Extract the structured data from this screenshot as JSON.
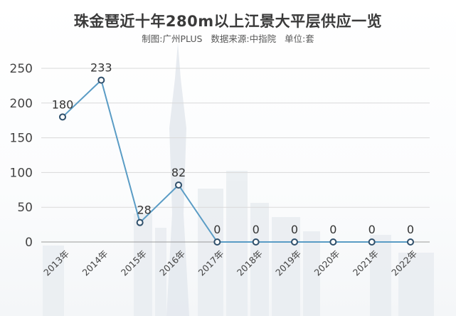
{
  "chart_data": {
    "type": "line",
    "title": "珠金琶近十年280m以上江景大平层供应一览",
    "subtitle": "制图:广州PLUS   数据来源:中指院   单位:套",
    "xlabel": "",
    "ylabel": "",
    "categories": [
      "2013年",
      "2014年",
      "2015年",
      "2016年",
      "2017年",
      "2018年",
      "2019年",
      "2020年",
      "2021年",
      "2022年"
    ],
    "series": [
      {
        "values": [
          180,
          233,
          28,
          82,
          0,
          0,
          0,
          0,
          0,
          0
        ]
      }
    ],
    "y_ticks": [
      "0",
      "50",
      "100",
      "150",
      "200",
      "250"
    ],
    "ylim": [
      0,
      250
    ],
    "grid": true,
    "legend": "none",
    "data_labels": true
  },
  "colors": {
    "line": "#5a9cc5",
    "marker_stroke": "#2f4f6b",
    "grid": "#d9d9d9",
    "axis": "#9a9a9a"
  }
}
